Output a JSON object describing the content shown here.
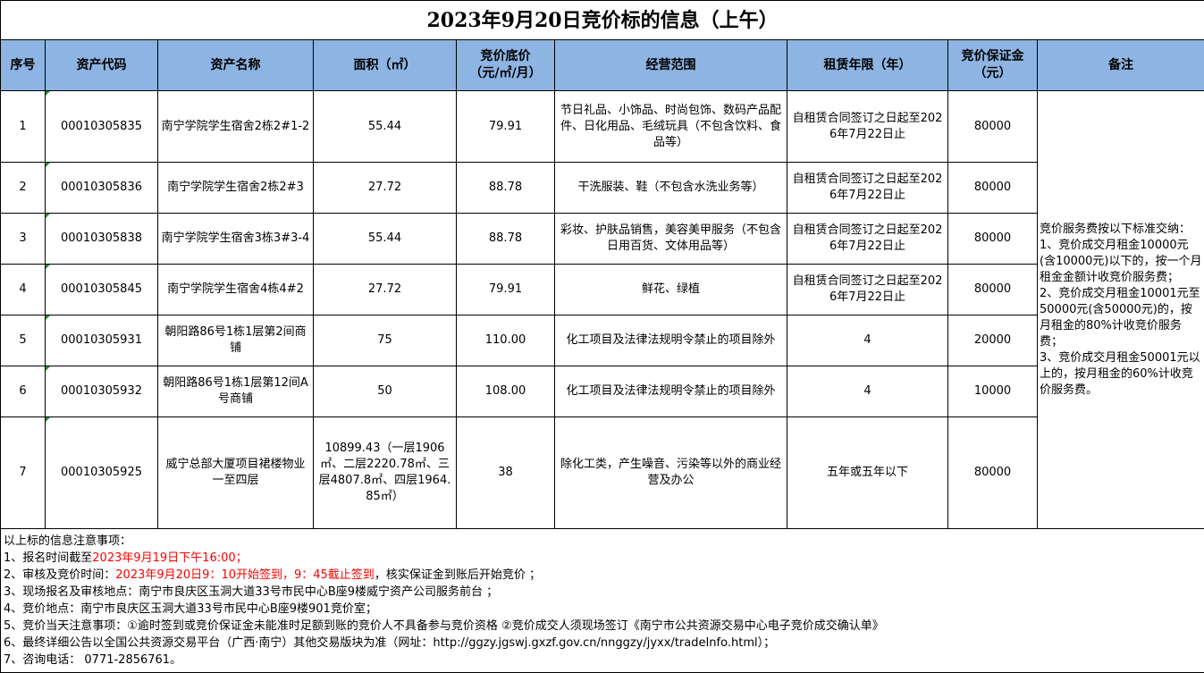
{
  "title": "2023年9月20日竞价标的信息（上午）",
  "headers": [
    "序号",
    "资产代码",
    "资产名称",
    "面积（㎡）",
    "竞价底价\n（元/㎡/月）",
    "经营范围",
    "租赁年限（年）",
    "竞价保证金\n（元）",
    "备注"
  ],
  "rows": [
    {
      "no": "1",
      "code": "00010305835",
      "name": "南宁学院学生宿舍2栋2#1-2",
      "area": "55.44",
      "price": "79.91",
      "scope": "节日礼品、小饰品、时尚包饰、数码产品配件、日化用品、毛绒玩具（不包含饮料、食品等）",
      "term": "自租赁合同签订之日起至2026年7月22日止",
      "deposit": "80000"
    },
    {
      "no": "2",
      "code": "00010305836",
      "name": "南宁学院学生宿舍2栋2#3",
      "area": "27.72",
      "price": "88.78",
      "scope": "干洗服装、鞋（不包含水洗业务等）",
      "term": "自租赁合同签订之日起至2026年7月22日止",
      "deposit": "80000"
    },
    {
      "no": "3",
      "code": "00010305838",
      "name": "南宁学院学生宿舍3栋3#3-4",
      "area": "55.44",
      "price": "88.78",
      "scope": "彩妆、护肤品销售，美容美甲服务（不包含日用百货、文体用品等）",
      "term": "自租赁合同签订之日起至2026年7月22日止",
      "deposit": "80000"
    },
    {
      "no": "4",
      "code": "00010305845",
      "name": "南宁学院学生宿舍4栋4#2",
      "area": "27.72",
      "price": "79.91",
      "scope": "鲜花、绿植",
      "term": "自租赁合同签订之日起至2026年7月22日止",
      "deposit": "80000"
    },
    {
      "no": "5",
      "code": "00010305931",
      "name": "朝阳路86号1栋1层第2间商铺",
      "area": "75",
      "price": "110.00",
      "scope": "化工项目及法律法规明令禁止的项目除外",
      "term": "4",
      "deposit": "20000"
    },
    {
      "no": "6",
      "code": "00010305932",
      "name": "朝阳路86号1栋1层第12间A号商铺",
      "area": "50",
      "price": "108.00",
      "scope": "化工项目及法律法规明令禁止的项目除外",
      "term": "4",
      "deposit": "10000"
    },
    {
      "no": "7",
      "code": "00010305925",
      "name": "威宁总部大厦项目裙楼物业一至四层",
      "area": "10899.43（一层1906㎡、二层2220.78㎡、三层4807.8㎡、四层1964.85㎡）",
      "price": "38",
      "scope": "除化工类，产生噪音、污染等以外的商业经营及办公",
      "term": "五年或五年以下",
      "deposit": "80000"
    }
  ],
  "remark": "竞价服务费按以下标准交纳：\n1、竞价成交月租金10000元(含10000元)以下的，按一个月租金金额计收竞价服务费；\n2、竞价成交月租金10001元至50000元(含50000元)的，按月租金的80%计收竞价服务费；\n3、竞价成交月租金50001元以上的，按月租金的60%计收竞价服务费。",
  "notes": [
    [
      {
        "t": "以上标的信息注意事项："
      }
    ],
    [
      {
        "t": "1、报名时间截至"
      },
      {
        "t": "2023年9月19日下午16:00；",
        "red": true
      }
    ],
    [
      {
        "t": "2、审核及竞价时间："
      },
      {
        "t": "2023年9月20日9：10开始签到，9：45截止签到",
        "red": true
      },
      {
        "t": "，核实保证金到账后开始竞价 ；"
      }
    ],
    [
      {
        "t": "3、现场报名及审核地点：南宁市良庆区玉洞大道33号市民中心B座9楼威宁资产公司服务前台 ；"
      }
    ],
    [
      {
        "t": "4、竞价地点：南宁市良庆区玉洞大道33号市民中心B座9楼901竞价室；"
      }
    ],
    [
      {
        "t": "5、竞价当天注意事项：①逾时签到或竞价保证金未能准时足额到账的竞价人不具备参与竞价资格 ②竞价成交人须现场签订《南宁市公共资源交易中心电子竞价成交确认单》"
      }
    ],
    [
      {
        "t": "6、最终详细公告以全国公共资源交易平台（广西·南宁）其他交易版块为准（网址：http://ggzy.jgswj.gxzf.gov.cn/nnggzy/jyxx/tradeInfo.html）；"
      }
    ],
    [
      {
        "t": "7、咨询电话： 0771-2856761。"
      }
    ]
  ],
  "colors": {
    "header_bg": "#8db4e2",
    "highlight": "#ff0000"
  }
}
